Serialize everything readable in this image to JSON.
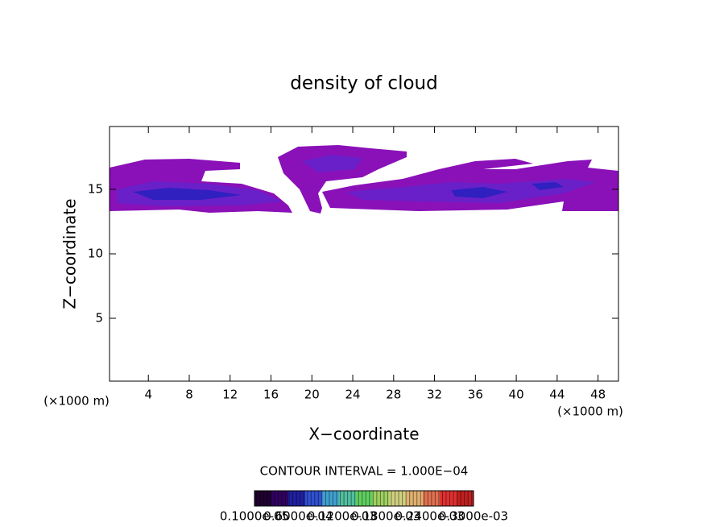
{
  "chart_data": {
    "type": "contour",
    "title": "density of cloud",
    "x_label": "X−coordinate",
    "y_label": "Z−coordinate",
    "x_unit": "(×1000 m)",
    "y_unit": "(×1000 m)",
    "xlim": [
      0.2,
      50
    ],
    "xticks": [
      4,
      8,
      12,
      16,
      20,
      24,
      28,
      32,
      36,
      40,
      44,
      48
    ],
    "ylim": [
      0.125,
      19.875
    ],
    "yticks": [
      5,
      10,
      15
    ],
    "contour_interval_label": "CONTOUR INTERVAL = 1.000E−04",
    "colorbar": {
      "colors": [
        "#200030",
        "#300060",
        "#2020a0",
        "#3050d0",
        "#40a0d0",
        "#50c0a0",
        "#60d060",
        "#a0d060",
        "#d0d080",
        "#e0b070",
        "#e07050",
        "#e03030",
        "#c02020"
      ],
      "labels": [
        "0.1000e-05",
        "0.6000e-04",
        "0.1200e-03",
        "0.1800e-03",
        "0.2400e-03",
        "0.3000e-03"
      ]
    }
  }
}
